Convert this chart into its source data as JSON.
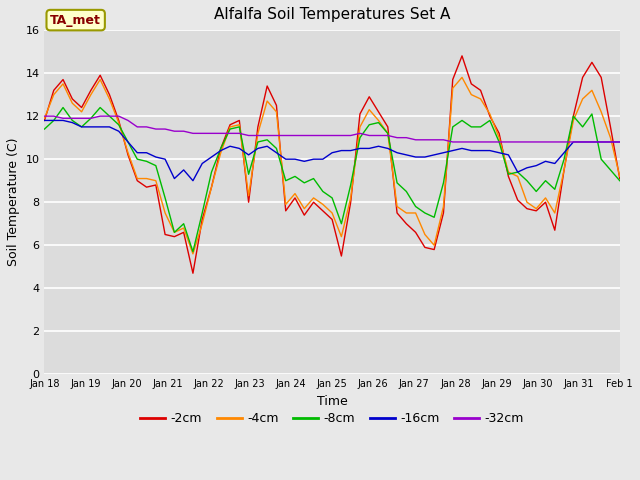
{
  "title": "Alfalfa Soil Temperatures Set A",
  "xlabel": "Time",
  "ylabel": "Soil Temperature (C)",
  "ylim": [
    0,
    16
  ],
  "yticks": [
    0,
    2,
    4,
    6,
    8,
    10,
    12,
    14,
    16
  ],
  "fig_facecolor": "#e8e8e8",
  "ax_facecolor": "#dcdcdc",
  "legend_label": "TA_met",
  "legend_bg": "#ffffcc",
  "legend_border": "#999900",
  "series_colors": [
    "#dd0000",
    "#ff8800",
    "#00bb00",
    "#0000cc",
    "#9900cc"
  ],
  "series_labels": [
    "-2cm",
    "-4cm",
    "-8cm",
    "-16cm",
    "-32cm"
  ],
  "x_tick_labels": [
    "Jan 18",
    "Jan 19",
    "Jan 20",
    "Jan 21",
    "Jan 22",
    "Jan 23",
    "Jan 24",
    "Jan 25",
    "Jan 26",
    "Jan 27",
    "Jan 28",
    "Jan 29",
    "Jan 30",
    "Jan 31",
    "Feb 1"
  ],
  "series_2cm": [
    11.8,
    13.2,
    13.7,
    12.8,
    12.4,
    13.2,
    13.9,
    13.0,
    11.8,
    10.2,
    9.0,
    8.7,
    8.8,
    6.5,
    6.4,
    6.6,
    4.7,
    7.2,
    8.7,
    10.5,
    11.6,
    11.8,
    8.0,
    11.5,
    13.4,
    12.5,
    7.6,
    8.2,
    7.4,
    8.0,
    7.6,
    7.2,
    5.5,
    8.0,
    12.1,
    12.9,
    12.2,
    11.5,
    7.5,
    7.0,
    6.6,
    5.9,
    5.8,
    7.5,
    13.7,
    14.8,
    13.5,
    13.2,
    12.0,
    11.2,
    9.2,
    8.1,
    7.7,
    7.6,
    8.0,
    6.7,
    9.5,
    12.0,
    13.8,
    14.5,
    13.8,
    11.5,
    9.1
  ],
  "series_4cm": [
    11.9,
    13.0,
    13.5,
    12.6,
    12.2,
    13.0,
    13.7,
    12.8,
    11.7,
    10.3,
    9.1,
    9.1,
    9.0,
    7.5,
    6.6,
    6.8,
    5.6,
    7.0,
    8.7,
    10.3,
    11.5,
    11.6,
    8.3,
    11.2,
    12.7,
    12.2,
    7.9,
    8.4,
    7.7,
    8.2,
    7.9,
    7.5,
    6.4,
    8.2,
    11.5,
    12.3,
    11.8,
    11.2,
    7.8,
    7.5,
    7.5,
    6.5,
    6.0,
    7.8,
    13.3,
    13.8,
    13.0,
    12.8,
    12.1,
    11.0,
    9.4,
    9.2,
    8.0,
    7.7,
    8.2,
    7.5,
    9.5,
    11.8,
    12.8,
    13.2,
    12.2,
    11.0,
    9.2
  ],
  "series_8cm": [
    11.4,
    11.8,
    12.4,
    11.8,
    11.5,
    11.9,
    12.4,
    12.0,
    11.6,
    10.8,
    10.0,
    9.9,
    9.7,
    8.2,
    6.6,
    7.0,
    5.7,
    7.5,
    9.4,
    10.5,
    11.4,
    11.5,
    9.3,
    10.8,
    10.9,
    10.5,
    9.0,
    9.2,
    8.9,
    9.1,
    8.5,
    8.2,
    7.0,
    8.8,
    11.0,
    11.6,
    11.7,
    11.2,
    8.9,
    8.5,
    7.8,
    7.5,
    7.3,
    8.9,
    11.5,
    11.8,
    11.5,
    11.5,
    11.8,
    10.8,
    9.3,
    9.4,
    9.0,
    8.5,
    9.0,
    8.6,
    10.0,
    12.0,
    11.5,
    12.1,
    10.0,
    9.5,
    9.0
  ],
  "series_16cm": [
    11.8,
    11.8,
    11.8,
    11.7,
    11.5,
    11.5,
    11.5,
    11.5,
    11.3,
    10.8,
    10.3,
    10.3,
    10.1,
    10.0,
    9.1,
    9.5,
    9.0,
    9.8,
    10.1,
    10.4,
    10.6,
    10.5,
    10.2,
    10.5,
    10.6,
    10.3,
    10.0,
    10.0,
    9.9,
    10.0,
    10.0,
    10.3,
    10.4,
    10.4,
    10.5,
    10.5,
    10.6,
    10.5,
    10.3,
    10.2,
    10.1,
    10.1,
    10.2,
    10.3,
    10.4,
    10.5,
    10.4,
    10.4,
    10.4,
    10.3,
    10.2,
    9.4,
    9.6,
    9.7,
    9.9,
    9.8,
    10.3,
    10.8,
    10.8,
    10.8,
    10.8,
    10.8,
    10.8
  ],
  "series_32cm": [
    12.0,
    12.0,
    11.9,
    11.9,
    11.9,
    11.9,
    12.0,
    12.0,
    12.0,
    11.8,
    11.5,
    11.5,
    11.4,
    11.4,
    11.3,
    11.3,
    11.2,
    11.2,
    11.2,
    11.2,
    11.2,
    11.2,
    11.1,
    11.1,
    11.1,
    11.1,
    11.1,
    11.1,
    11.1,
    11.1,
    11.1,
    11.1,
    11.1,
    11.1,
    11.2,
    11.1,
    11.1,
    11.1,
    11.0,
    11.0,
    10.9,
    10.9,
    10.9,
    10.9,
    10.8,
    10.8,
    10.8,
    10.8,
    10.8,
    10.8,
    10.8,
    10.8,
    10.8,
    10.8,
    10.8,
    10.8,
    10.8,
    10.8,
    10.8,
    10.8,
    10.8,
    10.8,
    10.8
  ]
}
